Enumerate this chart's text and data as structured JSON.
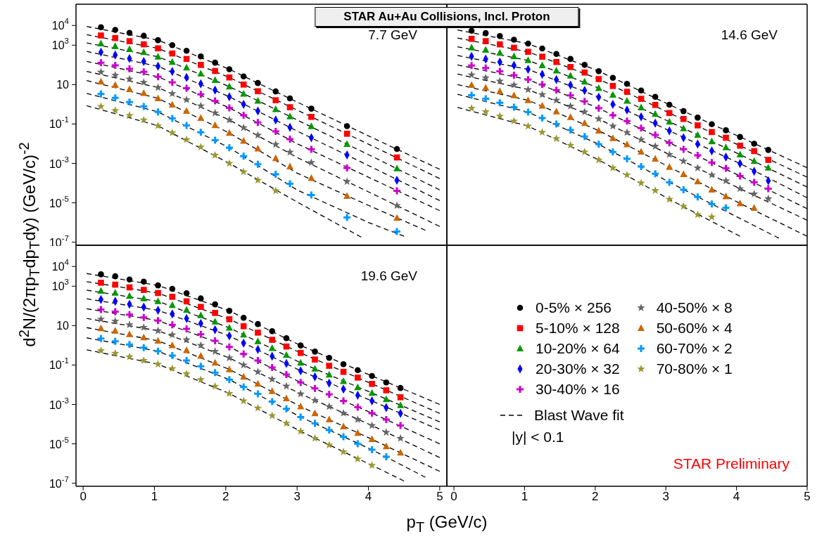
{
  "chart_data": [
    {
      "type": "scatter",
      "title": "STAR Au+Au Collisions, Incl. Proton",
      "ylabel": "d$^{2}$N/(2πp$_{T}$dp$_{T}$dy) (GeV/c)$^{-2}$",
      "xlim": [
        -0.1,
        5.1
      ],
      "xticks": [
        {
          "value": 0,
          "label": null
        },
        {
          "value": 1,
          "label": null
        },
        {
          "value": 2,
          "label": null
        },
        {
          "value": 3,
          "label": null
        },
        {
          "value": 4,
          "label": null
        },
        {
          "value": 5,
          "label": null
        }
      ],
      "ylim": [
        7e-08,
        120000.0
      ],
      "yticks": [
        {
          "value": 10000,
          "label": "10$^{4}$"
        },
        {
          "value": 1000,
          "label": "10$^{3}$"
        },
        10,
        {
          "value": 0.1,
          "label": "10$^{-1}$"
        },
        {
          "value": 0.001,
          "label": "10$^{-3}$"
        },
        {
          "value": 1e-05,
          "label": "10$^{-5}$"
        },
        {
          "value": 1e-07,
          "label": "10$^{-7}$"
        }
      ],
      "log": "y",
      "tick_labels": "y",
      "annotations": [
        "7.7 GeV"
      ],
      "series": [
        {
          "color": "#000000",
          "marker": "circle",
          "x": [
            0.25,
            0.45,
            0.65,
            0.85,
            1.05,
            1.25,
            1.45,
            1.65,
            1.85,
            2.05,
            2.25,
            2.45,
            2.7,
            2.9,
            3.2,
            3.7,
            4.4
          ],
          "values": [
            8100,
            6000,
            4200,
            3000,
            1800,
            1000,
            520,
            270,
            130,
            60,
            26,
            12,
            4.5,
            2.0,
            0.6,
            0.078,
            0.0054
          ]
        },
        {
          "color": "#ff0000",
          "marker": "square",
          "x": [
            0.25,
            0.45,
            0.65,
            0.85,
            1.05,
            1.25,
            1.45,
            1.65,
            1.85,
            2.05,
            2.25,
            2.45,
            2.7,
            2.9,
            3.2,
            3.7,
            4.4
          ],
          "values": [
            3100,
            2300,
            1600,
            1100,
            690,
            380,
            200,
            100,
            49,
            23,
            10,
            4.6,
            1.6,
            0.71,
            0.23,
            0.032,
            0.002
          ]
        },
        {
          "color": "#009900",
          "marker": "triangle",
          "x": [
            0.25,
            0.45,
            0.65,
            0.85,
            1.05,
            1.25,
            1.45,
            1.65,
            1.85,
            2.05,
            2.25,
            2.45,
            2.7,
            2.9,
            3.2,
            3.7,
            4.4
          ],
          "values": [
            1200,
            890,
            620,
            440,
            260,
            140,
            72,
            36,
            17,
            7.9,
            3.4,
            1.5,
            0.56,
            0.24,
            0.076,
            0.0095,
            0.00055
          ]
        },
        {
          "color": "#0000ff",
          "marker": "diamond",
          "x": [
            0.25,
            0.45,
            0.65,
            0.85,
            1.05,
            1.25,
            1.45,
            1.65,
            1.85,
            2.05,
            2.25,
            2.45,
            2.7,
            2.9,
            3.2,
            3.7,
            4.4
          ],
          "values": [
            440,
            320,
            210,
            150,
            85,
            46,
            23,
            11,
            5.2,
            2.4,
            1.0,
            0.45,
            0.16,
            0.068,
            0.02,
            0.0027,
            0.00014
          ]
        },
        {
          "color": "#cc00cc",
          "marker": "cross",
          "x": [
            0.25,
            0.45,
            0.65,
            0.85,
            1.05,
            1.25,
            1.45,
            1.65,
            1.85,
            2.05,
            2.25,
            2.45,
            2.7,
            2.9,
            3.2,
            3.7,
            4.4
          ],
          "values": [
            130,
            95,
            63,
            44,
            25,
            13,
            6.6,
            3.2,
            1.5,
            0.66,
            0.28,
            0.12,
            0.042,
            0.017,
            0.0052,
            0.00059,
            4.1e-05
          ]
        },
        {
          "color": "#666666",
          "marker": "star",
          "x": [
            0.25,
            0.45,
            0.65,
            0.85,
            1.05,
            1.25,
            1.45,
            1.65,
            1.85,
            2.05,
            2.25,
            2.45,
            2.7,
            2.9,
            3.2,
            3.7,
            4.4
          ],
          "values": [
            43,
            30,
            19,
            13,
            7.1,
            3.5,
            1.7,
            0.83,
            0.36,
            0.16,
            0.065,
            0.027,
            0.0091,
            0.0037,
            0.0011,
            0.00012,
            7.2e-06
          ]
        },
        {
          "color": "#cc6600",
          "marker": "triangle",
          "x": [
            0.25,
            0.45,
            0.65,
            0.85,
            1.05,
            1.25,
            1.45,
            1.65,
            1.85,
            2.05,
            2.25,
            2.45,
            2.7,
            2.9,
            3.2,
            3.7,
            4.4
          ],
          "values": [
            14,
            9.5,
            5.8,
            3.7,
            2.0,
            0.95,
            0.45,
            0.2,
            0.087,
            0.035,
            0.014,
            0.0056,
            0.0018,
            0.00069,
            0.00018,
            2.2e-05,
            1.7e-06
          ]
        },
        {
          "color": "#0099ff",
          "marker": "cross",
          "x": [
            0.25,
            0.45,
            0.65,
            0.85,
            1.05,
            1.25,
            1.45,
            1.65,
            1.85,
            2.05,
            2.25,
            2.45,
            2.7,
            2.9,
            3.2,
            3.7,
            4.4
          ],
          "values": [
            3.3,
            2.1,
            1.3,
            0.78,
            0.41,
            0.19,
            0.085,
            0.038,
            0.015,
            0.0062,
            0.0023,
            0.00091,
            0.00028,
            9.3e-05,
            2.5e-05,
            1.8e-06,
            3.5e-07
          ]
        },
        {
          "color": "#999933",
          "marker": "star",
          "x": [
            0.25,
            0.45,
            0.65,
            0.85,
            1.05,
            1.25,
            1.45,
            1.65,
            1.85,
            2.05,
            2.25,
            2.45,
            2.7
          ],
          "values": [
            0.78,
            0.48,
            0.27,
            0.16,
            0.081,
            0.036,
            0.016,
            0.0068,
            0.0026,
            0.001,
            0.00037,
            0.00014,
            4.1e-05
          ]
        },
        {
          "type": "line",
          "color": "#000000",
          "line_style": "dashed",
          "marker": "none",
          "x": [
            0.05,
            1.05,
            2.05,
            3.0,
            4.0,
            5.0
          ],
          "values": [
            8900,
            1800,
            60,
            1.3,
            0.025,
            0.0005
          ]
        },
        {
          "type": "line",
          "color": "#000000",
          "line_style": "dashed",
          "marker": "none",
          "x": [
            0.05,
            1.05,
            2.05,
            3.0,
            4.0,
            5.0
          ],
          "values": [
            3400,
            690,
            23,
            0.51,
            0.0095,
            0.00017
          ]
        },
        {
          "type": "line",
          "color": "#000000",
          "line_style": "dashed",
          "marker": "none",
          "x": [
            0.05,
            1.05,
            2.05,
            3.0,
            4.0,
            5.0
          ],
          "values": [
            1300,
            260,
            7.9,
            0.16,
            0.0028,
            4.5e-05
          ]
        },
        {
          "type": "line",
          "color": "#000000",
          "line_style": "dashed",
          "marker": "none",
          "x": [
            0.05,
            1.05,
            2.05,
            3.0,
            4.0,
            5.0
          ],
          "values": [
            480,
            85,
            2.4,
            0.044,
            0.00078,
            1.3e-05
          ]
        },
        {
          "type": "line",
          "color": "#000000",
          "line_style": "dashed",
          "marker": "none",
          "x": [
            0.05,
            1.05,
            2.05,
            3.0,
            4.0,
            5.0
          ],
          "values": [
            150,
            25,
            0.66,
            0.01,
            0.0002,
            4e-06
          ]
        },
        {
          "type": "line",
          "color": "#000000",
          "line_style": "dashed",
          "marker": "none",
          "x": [
            0.05,
            1.05,
            2.05,
            3.0,
            4.0,
            5.0
          ],
          "values": [
            47,
            7.1,
            0.16,
            0.002,
            3.6e-05,
            6.3e-07
          ]
        },
        {
          "type": "line",
          "color": "#000000",
          "line_style": "dashed",
          "marker": "none",
          "x": [
            0.05,
            1.05,
            2.05,
            3.0,
            4.0,
            4.8
          ],
          "values": [
            16,
            2.0,
            0.035,
            0.00032,
            7.4e-06,
            4e-07
          ]
        },
        {
          "type": "line",
          "color": "#000000",
          "line_style": "dashed",
          "marker": "none",
          "x": [
            0.05,
            1.05,
            2.05,
            3.0,
            4.0,
            4.5
          ],
          "values": [
            3.6,
            0.41,
            0.0062,
            4.5e-05,
            1e-06,
            2e-07
          ]
        },
        {
          "type": "line",
          "color": "#000000",
          "line_style": "dashed",
          "marker": "none",
          "x": [
            0.05,
            1.05,
            2.05,
            3.0,
            3.9
          ],
          "values": [
            0.85,
            0.081,
            0.001,
            1.1e-05,
            1.8e-07
          ]
        }
      ]
    },
    {
      "type": "scatter",
      "xlim": [
        -0.1,
        5.0
      ],
      "xticks": [
        {
          "value": 0,
          "label": null
        },
        {
          "value": 1,
          "label": null
        },
        {
          "value": 2,
          "label": null
        },
        {
          "value": 3,
          "label": null
        },
        {
          "value": 4,
          "label": null
        },
        {
          "value": 5,
          "label": null
        }
      ],
      "ylim": [
        7e-08,
        120000.0
      ],
      "yticks": [
        {
          "value": 10000,
          "label": null
        },
        {
          "value": 1000,
          "label": null
        },
        {
          "value": 10,
          "label": null
        },
        {
          "value": 0.1,
          "label": null
        },
        {
          "value": 0.001,
          "label": null
        },
        {
          "value": 1e-05,
          "label": null
        },
        {
          "value": 1e-07,
          "label": null
        }
      ],
      "log": "y",
      "tick_labels": false,
      "annotations": [
        "14.6 GeV"
      ],
      "series": [
        {
          "color": "#000000",
          "marker": "circle",
          "x": [
            0.25,
            0.45,
            0.65,
            0.85,
            1.05,
            1.25,
            1.45,
            1.65,
            1.85,
            2.05,
            2.25,
            2.45,
            2.65,
            2.85,
            3.05,
            3.25,
            3.45,
            3.65,
            3.85,
            4.05,
            4.25,
            4.45
          ],
          "values": [
            5400,
            4100,
            2900,
            1900,
            1200,
            680,
            360,
            200,
            100,
            48,
            22,
            11,
            5.0,
            2.4,
            0.95,
            0.45,
            0.21,
            0.098,
            0.048,
            0.022,
            0.01,
            0.0048
          ]
        },
        {
          "color": "#ff0000",
          "marker": "square",
          "x": [
            0.25,
            0.45,
            0.65,
            0.85,
            1.05,
            1.25,
            1.45,
            1.65,
            1.85,
            2.05,
            2.25,
            2.45,
            2.65,
            2.85,
            3.05,
            3.25,
            3.45,
            3.65,
            3.85,
            4.05,
            4.25,
            4.45
          ],
          "values": [
            2100,
            1600,
            1100,
            740,
            460,
            260,
            140,
            78,
            41,
            19,
            8.5,
            4.3,
            1.9,
            0.93,
            0.36,
            0.18,
            0.085,
            0.039,
            0.02,
            0.0079,
            0.0042,
            0.0015
          ]
        },
        {
          "color": "#009900",
          "marker": "triangle",
          "x": [
            0.25,
            0.45,
            0.65,
            0.85,
            1.05,
            1.25,
            1.45,
            1.65,
            1.85,
            2.05,
            2.25,
            2.45,
            2.65,
            2.85,
            3.05,
            3.25,
            3.45,
            3.65,
            3.85,
            4.05,
            4.25,
            4.45
          ],
          "values": [
            760,
            580,
            410,
            270,
            170,
            95,
            51,
            28,
            14,
            6.6,
            3.0,
            1.5,
            0.68,
            0.32,
            0.13,
            0.06,
            0.028,
            0.013,
            0.0065,
            0.0028,
            0.0013,
            0.0006
          ]
        },
        {
          "color": "#0000ff",
          "marker": "diamond",
          "x": [
            0.25,
            0.45,
            0.65,
            0.85,
            1.05,
            1.25,
            1.45,
            1.65,
            1.85,
            2.05,
            2.25,
            2.45,
            2.65,
            2.85,
            3.05,
            3.25,
            3.45,
            3.65,
            3.85,
            4.05,
            4.25,
            4.45
          ],
          "values": [
            270,
            200,
            140,
            95,
            59,
            33,
            18,
            9.5,
            5.0,
            2.3,
            1.0,
            0.51,
            0.23,
            0.11,
            0.045,
            0.02,
            0.0095,
            0.0043,
            0.0021,
            0.00098,
            0.0004,
            0.00013
          ]
        },
        {
          "color": "#cc00cc",
          "marker": "cross",
          "x": [
            0.25,
            0.45,
            0.65,
            0.85,
            1.05,
            1.25,
            1.45,
            1.65,
            1.85,
            2.05,
            2.25,
            2.45,
            2.65,
            2.85,
            3.05,
            3.25,
            3.45,
            3.65,
            3.85,
            4.05,
            4.25,
            4.45
          ],
          "values": [
            93,
            69,
            47,
            30,
            18,
            10,
            5.2,
            2.8,
            1.4,
            0.63,
            0.28,
            0.14,
            0.062,
            0.028,
            0.011,
            0.0052,
            0.0026,
            0.0011,
            0.00056,
            0.00023,
            0.00011,
            5.2e-05
          ]
        },
        {
          "color": "#666666",
          "marker": "star",
          "x": [
            0.25,
            0.45,
            0.65,
            0.85,
            1.05,
            1.25,
            1.45,
            1.65,
            1.85,
            2.05,
            2.25,
            2.45,
            2.65,
            2.85,
            3.05,
            3.25,
            3.45,
            3.65,
            3.85,
            4.05,
            4.25,
            4.45
          ],
          "values": [
            31,
            22,
            15,
            9.5,
            5.6,
            3.1,
            1.6,
            0.81,
            0.41,
            0.18,
            0.078,
            0.037,
            0.016,
            0.0074,
            0.0028,
            0.0013,
            0.00059,
            0.00026,
            0.00013,
            5.2e-05,
            2.8e-05,
            1.6e-05
          ]
        },
        {
          "color": "#cc6600",
          "marker": "triangle",
          "x": [
            0.25,
            0.45,
            0.65,
            0.85,
            1.05,
            1.25,
            1.45,
            1.65,
            1.85,
            2.05,
            2.25,
            2.45,
            2.65,
            2.85,
            3.05,
            3.25,
            3.45,
            3.65,
            3.85,
            4.05,
            4.25
          ],
          "values": [
            9.5,
            6.8,
            4.5,
            2.8,
            1.6,
            0.85,
            0.43,
            0.22,
            0.11,
            0.046,
            0.019,
            0.0091,
            0.0039,
            0.0017,
            0.00065,
            0.00028,
            0.00012,
            4.6e-05,
            2.1e-05,
            9.3e-06,
            5.4e-06
          ]
        },
        {
          "color": "#0099ff",
          "marker": "cross",
          "x": [
            0.25,
            0.45,
            0.65,
            0.85,
            1.05,
            1.25,
            1.45,
            1.65,
            1.85,
            2.05,
            2.25,
            2.45,
            2.65,
            2.85,
            3.05,
            3.25,
            3.45,
            3.65,
            3.85
          ],
          "values": [
            2.9,
            1.9,
            1.2,
            0.72,
            0.4,
            0.2,
            0.1,
            0.049,
            0.023,
            0.0093,
            0.0038,
            0.0017,
            0.00069,
            0.0003,
            0.00011,
            4.6e-05,
            2e-05,
            8.7e-06,
            5.6e-06
          ]
        },
        {
          "color": "#999933",
          "marker": "star",
          "x": [
            0.25,
            0.45,
            0.65,
            0.85,
            1.05,
            1.25,
            1.45,
            1.65,
            1.85,
            2.05,
            2.25,
            2.45,
            2.65,
            2.85,
            3.05,
            3.25,
            3.45,
            3.65
          ],
          "values": [
            0.63,
            0.42,
            0.25,
            0.14,
            0.078,
            0.038,
            0.018,
            0.0083,
            0.0038,
            0.0015,
            0.00059,
            0.00026,
            0.0001,
            4.2e-05,
            1.5e-05,
            6.6e-06,
            2.5e-06,
            1.9e-06
          ]
        },
        {
          "type": "line",
          "color": "#000000",
          "line_style": "dashed",
          "marker": "none",
          "x": [
            0.05,
            1.05,
            2.05,
            3.05,
            4.05,
            5.0
          ],
          "values": [
            5900,
            1200,
            48,
            0.95,
            0.022,
            0.0006
          ]
        },
        {
          "type": "line",
          "color": "#000000",
          "line_style": "dashed",
          "marker": "none",
          "x": [
            0.05,
            1.05,
            2.05,
            3.05,
            4.05,
            5.0
          ],
          "values": [
            2300,
            460,
            19,
            0.36,
            0.0079,
            0.0002
          ]
        },
        {
          "type": "line",
          "color": "#000000",
          "line_style": "dashed",
          "marker": "none",
          "x": [
            0.05,
            1.05,
            2.05,
            3.05,
            4.05,
            5.0
          ],
          "values": [
            830,
            170,
            6.6,
            0.13,
            0.0028,
            6.3e-05
          ]
        },
        {
          "type": "line",
          "color": "#000000",
          "line_style": "dashed",
          "marker": "none",
          "x": [
            0.05,
            1.05,
            2.05,
            3.05,
            4.05,
            5.0
          ],
          "values": [
            300,
            59,
            2.3,
            0.045,
            0.00098,
            1.8e-05
          ]
        },
        {
          "type": "line",
          "color": "#000000",
          "line_style": "dashed",
          "marker": "none",
          "x": [
            0.05,
            1.05,
            2.05,
            3.05,
            4.05,
            5.0
          ],
          "values": [
            100,
            18,
            0.63,
            0.011,
            0.00023,
            5e-06
          ]
        },
        {
          "type": "line",
          "color": "#000000",
          "line_style": "dashed",
          "marker": "none",
          "x": [
            0.05,
            1.05,
            2.05,
            3.05,
            4.05,
            5.0
          ],
          "values": [
            34,
            5.6,
            0.18,
            0.0028,
            5.2e-05,
            1.3e-06
          ]
        },
        {
          "type": "line",
          "color": "#000000",
          "line_style": "dashed",
          "marker": "none",
          "x": [
            0.05,
            1.05,
            2.05,
            3.05,
            4.05,
            5.0
          ],
          "values": [
            10,
            1.6,
            0.046,
            0.00065,
            9.3e-06,
            2e-07
          ]
        },
        {
          "type": "line",
          "color": "#000000",
          "line_style": "dashed",
          "marker": "none",
          "x": [
            0.05,
            1.05,
            2.05,
            3.05,
            4.05,
            4.6
          ],
          "values": [
            3.2,
            0.4,
            0.0093,
            0.00011,
            1.6e-06,
            1.6e-07
          ]
        },
        {
          "type": "line",
          "color": "#000000",
          "line_style": "dashed",
          "marker": "none",
          "x": [
            0.05,
            1.05,
            2.05,
            3.05,
            4.05
          ],
          "values": [
            0.69,
            0.078,
            0.0015,
            1.5e-05,
            2e-07
          ]
        }
      ]
    },
    {
      "type": "scatter",
      "xlabel": "p$_{T}$ (GeV/c)",
      "xlim": [
        -0.1,
        5.1
      ],
      "xticks": [
        0,
        1,
        2,
        3,
        4,
        5
      ],
      "ylim": [
        7e-08,
        120000.0
      ],
      "yticks": [
        {
          "value": 10000,
          "label": "10$^{4}$"
        },
        {
          "value": 1000,
          "label": "10$^{3}$"
        },
        10,
        {
          "value": 0.1,
          "label": "10$^{-1}$"
        },
        {
          "value": 0.001,
          "label": "10$^{-3}$"
        },
        {
          "value": 1e-05,
          "label": "10$^{-5}$"
        },
        {
          "value": 1e-07,
          "label": "10$^{-7}$"
        }
      ],
      "log": "y",
      "legend": "right",
      "annotations": [
        "19.6 GeV"
      ],
      "series": [
        {
          "name": "0-5% × 256",
          "color": "#000000",
          "marker": "circle",
          "x": [
            0.25,
            0.45,
            0.65,
            0.85,
            1.05,
            1.25,
            1.45,
            1.65,
            1.85,
            2.05,
            2.25,
            2.45,
            2.65,
            2.85,
            3.05,
            3.25,
            3.45,
            3.65,
            3.85,
            4.05,
            4.25,
            4.45
          ],
          "values": [
            4000,
            3200,
            2200,
            1700,
            1100,
            740,
            440,
            240,
            120,
            56,
            25,
            12,
            5.2,
            2.3,
            0.98,
            0.48,
            0.23,
            0.11,
            0.055,
            0.028,
            0.013,
            0.0068
          ]
        },
        {
          "name": "5-10% × 128",
          "color": "#ff0000",
          "marker": "square",
          "x": [
            0.25,
            0.45,
            0.65,
            0.85,
            1.05,
            1.25,
            1.45,
            1.65,
            1.85,
            2.05,
            2.25,
            2.45,
            2.65,
            2.85,
            3.05,
            3.25,
            3.45,
            3.65,
            3.85,
            4.05,
            4.25,
            4.45
          ],
          "values": [
            1500,
            1200,
            870,
            650,
            450,
            290,
            170,
            89,
            44,
            21,
            9.3,
            4.4,
            1.9,
            0.87,
            0.41,
            0.19,
            0.091,
            0.045,
            0.023,
            0.011,
            0.0052,
            0.0023
          ]
        },
        {
          "name": "10-20% × 64",
          "color": "#009900",
          "marker": "triangle",
          "x": [
            0.25,
            0.45,
            0.65,
            0.85,
            1.05,
            1.25,
            1.45,
            1.65,
            1.85,
            2.05,
            2.25,
            2.45,
            2.65,
            2.85,
            3.05,
            3.25,
            3.45,
            3.65,
            3.85,
            4.05,
            4.25,
            4.45
          ],
          "values": [
            580,
            460,
            320,
            240,
            170,
            110,
            63,
            33,
            16,
            7.8,
            3.5,
            1.6,
            0.72,
            0.32,
            0.13,
            0.065,
            0.032,
            0.015,
            0.0074,
            0.0038,
            0.0018,
            0.00091
          ]
        },
        {
          "name": "20-30% × 32",
          "color": "#0000ff",
          "marker": "diamond",
          "x": [
            0.25,
            0.45,
            0.65,
            0.85,
            1.05,
            1.25,
            1.45,
            1.65,
            1.85,
            2.05,
            2.25,
            2.45,
            2.65,
            2.85,
            3.05,
            3.25,
            3.45,
            3.65,
            3.85,
            4.05,
            4.25,
            4.45
          ],
          "values": [
            210,
            170,
            120,
            87,
            60,
            39,
            23,
            13,
            6.2,
            3.0,
            1.3,
            0.62,
            0.28,
            0.12,
            0.051,
            0.025,
            0.012,
            0.006,
            0.0029,
            0.0015,
            0.00069,
            0.00035
          ]
        },
        {
          "name": "30-40% × 16",
          "color": "#cc00cc",
          "marker": "cross",
          "x": [
            0.25,
            0.45,
            0.65,
            0.85,
            1.05,
            1.25,
            1.45,
            1.65,
            1.85,
            2.05,
            2.25,
            2.45,
            2.65,
            2.85,
            3.05,
            3.25,
            3.45,
            3.65,
            3.85,
            4.05,
            4.25,
            4.45
          ],
          "values": [
            66,
            51,
            36,
            26,
            18,
            11,
            6.8,
            3.6,
            1.7,
            0.83,
            0.36,
            0.17,
            0.074,
            0.033,
            0.013,
            0.0065,
            0.0032,
            0.0015,
            0.00072,
            0.00036,
            0.00017,
            8.5e-05
          ]
        },
        {
          "name": "40-50% × 8",
          "color": "#666666",
          "marker": "star",
          "x": [
            0.25,
            0.45,
            0.65,
            0.85,
            1.05,
            1.25,
            1.45,
            1.65,
            1.85,
            2.05,
            2.25,
            2.45,
            2.65,
            2.85,
            3.05,
            3.25,
            3.45,
            3.65,
            3.85,
            4.05,
            4.25,
            4.45
          ],
          "values": [
            21,
            17,
            11,
            8.1,
            5.5,
            3.4,
            1.9,
            1.0,
            0.49,
            0.23,
            0.1,
            0.045,
            0.019,
            0.0085,
            0.0034,
            0.0016,
            0.00078,
            0.00036,
            0.00017,
            8.5e-05,
            3.8e-05,
            1.9e-05
          ]
        },
        {
          "name": "50-60% × 4",
          "color": "#cc6600",
          "marker": "triangle",
          "x": [
            0.25,
            0.45,
            0.65,
            0.85,
            1.05,
            1.25,
            1.45,
            1.65,
            1.85,
            2.05,
            2.25,
            2.45,
            2.65,
            2.85,
            3.05,
            3.25,
            3.45,
            3.65,
            3.85,
            4.05,
            4.25,
            4.45
          ],
          "values": [
            7.2,
            5.4,
            3.6,
            2.5,
            1.7,
            1.0,
            0.56,
            0.29,
            0.13,
            0.06,
            0.025,
            0.011,
            0.0047,
            0.002,
            0.00078,
            0.00035,
            0.00017,
            7.6e-05,
            3.5e-05,
            1.7e-05,
            7.4e-06,
            3.5e-06
          ]
        },
        {
          "name": "60-70% × 2",
          "color": "#0099ff",
          "marker": "cross",
          "x": [
            0.25,
            0.45,
            0.65,
            0.85,
            1.05,
            1.25,
            1.45,
            1.65,
            1.85,
            2.05,
            2.25,
            2.45,
            2.65,
            2.85,
            3.05,
            3.25,
            3.45,
            3.65,
            3.85,
            4.05,
            4.25
          ],
          "values": [
            2.2,
            1.6,
            1.1,
            0.76,
            0.5,
            0.3,
            0.17,
            0.087,
            0.041,
            0.018,
            0.0076,
            0.0034,
            0.0014,
            0.0006,
            0.00023,
            0.00011,
            5e-05,
            2.3e-05,
            1e-05,
            5e-06,
            2.2e-06
          ]
        },
        {
          "name": "70-80% × 1",
          "color": "#999933",
          "marker": "star",
          "x": [
            0.25,
            0.45,
            0.65,
            0.85,
            1.05,
            1.25,
            1.45,
            1.65,
            1.85,
            2.05,
            2.25,
            2.45,
            2.65,
            2.85,
            3.05,
            3.25,
            3.45,
            3.65,
            3.85,
            4.05
          ],
          "values": [
            0.54,
            0.39,
            0.26,
            0.17,
            0.11,
            0.066,
            0.036,
            0.018,
            0.0083,
            0.0036,
            0.0015,
            0.00065,
            0.00027,
            0.00011,
            4.3e-05,
            1.9e-05,
            8.7e-06,
            3.9e-06,
            1.7e-06,
            8.1e-07
          ]
        },
        {
          "type": "line",
          "name": "Blast Wave fit",
          "color": "#000000",
          "line_style": "dashed",
          "marker": "none",
          "x": [
            0.05,
            1.05,
            2.05,
            3.05,
            4.05,
            5.0
          ],
          "values": [
            4400,
            1100,
            56,
            0.98,
            0.028,
            0.001
          ]
        },
        {
          "type": "line",
          "color": "#000000",
          "line_style": "dashed",
          "marker": "none",
          "x": [
            0.05,
            1.05,
            2.05,
            3.05,
            4.05,
            5.0
          ],
          "values": [
            1700,
            450,
            21,
            0.41,
            0.011,
            0.00035
          ]
        },
        {
          "type": "line",
          "color": "#000000",
          "line_style": "dashed",
          "marker": "none",
          "x": [
            0.05,
            1.05,
            2.05,
            3.05,
            4.05,
            5.0
          ],
          "values": [
            630,
            170,
            7.8,
            0.13,
            0.0038,
            0.00013
          ]
        },
        {
          "type": "line",
          "color": "#000000",
          "line_style": "dashed",
          "marker": "none",
          "x": [
            0.05,
            1.05,
            2.05,
            3.05,
            4.05,
            5.0
          ],
          "values": [
            230,
            60,
            3.0,
            0.051,
            0.0015,
            5e-05
          ]
        },
        {
          "type": "line",
          "color": "#000000",
          "line_style": "dashed",
          "marker": "none",
          "x": [
            0.05,
            1.05,
            2.05,
            3.05,
            4.05,
            5.0
          ],
          "values": [
            72,
            18,
            0.83,
            0.013,
            0.00036,
            1e-05
          ]
        },
        {
          "type": "line",
          "color": "#000000",
          "line_style": "dashed",
          "marker": "none",
          "x": [
            0.05,
            1.05,
            2.05,
            3.05,
            4.05,
            5.0
          ],
          "values": [
            23,
            5.5,
            0.23,
            0.0034,
            8.5e-05,
            2e-06
          ]
        },
        {
          "type": "line",
          "color": "#000000",
          "line_style": "dashed",
          "marker": "none",
          "x": [
            0.05,
            1.05,
            2.05,
            3.05,
            4.05,
            5.0
          ],
          "values": [
            7.9,
            1.7,
            0.06,
            0.00078,
            1.7e-05,
            4e-07
          ]
        },
        {
          "type": "line",
          "color": "#000000",
          "line_style": "dashed",
          "marker": "none",
          "x": [
            0.05,
            1.05,
            2.05,
            3.05,
            4.05,
            4.8
          ],
          "values": [
            2.4,
            0.5,
            0.018,
            0.00023,
            5e-06,
            2e-07
          ]
        },
        {
          "type": "line",
          "color": "#000000",
          "line_style": "dashed",
          "marker": "none",
          "x": [
            0.05,
            1.05,
            2.05,
            3.05,
            4.05,
            4.5
          ],
          "values": [
            0.59,
            0.11,
            0.0036,
            4.3e-05,
            8.1e-07,
            1.3e-07
          ]
        }
      ]
    },
    {
      "type": "scatter",
      "xlim": [
        -0.1,
        5.0
      ],
      "xticks": [
        0,
        1,
        2,
        3,
        4,
        5
      ],
      "ylim": [
        7e-08,
        120000.0
      ],
      "yticks": [
        {
          "value": 10000,
          "label": null
        },
        {
          "value": 1000,
          "label": null
        },
        {
          "value": 10,
          "label": null
        },
        {
          "value": 0.1,
          "label": null
        },
        {
          "value": 0.001,
          "label": null
        },
        {
          "value": 1e-05,
          "label": null
        },
        {
          "value": 1e-07,
          "label": null
        }
      ],
      "log": "y",
      "tick_labels": "x",
      "annotations": [
        "|y| < 0.1",
        "STAR Preliminary"
      ]
    }
  ]
}
